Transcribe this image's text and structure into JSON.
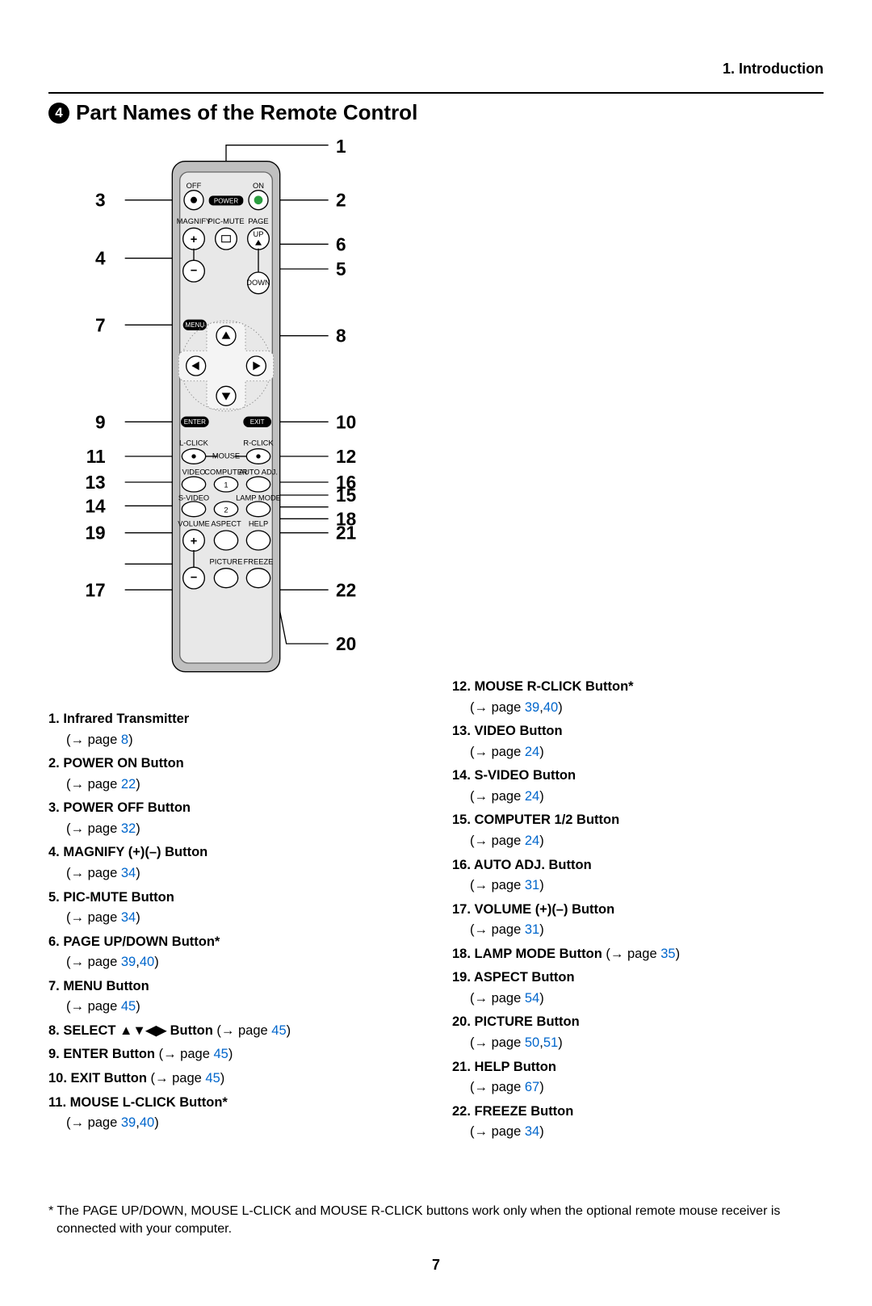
{
  "chapter": "1. Introduction",
  "section_number_glyph": "4",
  "section_title": "Part Names of the Remote Control",
  "page_number": "7",
  "footnote": "* The PAGE UP/DOWN, MOUSE L-CLICK and MOUSE R-CLICK buttons work only when the optional remote mouse receiver is connected with your computer.",
  "link_color": "#0066cc",
  "remote_labels": {
    "off": "OFF",
    "on": "ON",
    "power": "POWER",
    "magnify": "MAGNIFY",
    "picmute": "PIC-MUTE",
    "page": "PAGE",
    "up": "UP",
    "down": "DOWN",
    "menu": "MENU",
    "enter": "ENTER",
    "exit": "EXIT",
    "lclick": "L-CLICK",
    "rclick": "R-CLICK",
    "mouse": "MOUSE",
    "video": "VIDEO",
    "computer": "COMPUTER",
    "autoadj": "AUTO ADJ.",
    "svideo": "S-VIDEO",
    "lampmode": "LAMP MODE",
    "volume": "VOLUME",
    "aspect": "ASPECT",
    "help": "HELP",
    "picture": "PICTURE",
    "freeze": "FREEZE"
  },
  "callouts": {
    "n1": "1",
    "n2": "2",
    "n3": "3",
    "n4": "4",
    "n5": "5",
    "n6": "6",
    "n7": "7",
    "n8": "8",
    "n9": "9",
    "n10": "10",
    "n11": "11",
    "n12": "12",
    "n13": "13",
    "n14": "14",
    "n15": "15",
    "n16": "16",
    "n17": "17",
    "n18": "18",
    "n19": "19",
    "n20": "20",
    "n21": "21",
    "n22": "22"
  },
  "left_items": [
    {
      "num": "1.",
      "title": "Infrared Transmitter",
      "refs_prefix": "(→ page ",
      "refs": [
        "8"
      ],
      "refs_suffix": ")"
    },
    {
      "num": "2.",
      "title": "POWER ON Button",
      "refs_prefix": "(→ page ",
      "refs": [
        "22"
      ],
      "refs_suffix": ")"
    },
    {
      "num": "3.",
      "title": "POWER OFF Button",
      "refs_prefix": "(→ page ",
      "refs": [
        "32"
      ],
      "refs_suffix": ")"
    },
    {
      "num": "4.",
      "title": "MAGNIFY (+)(–) Button",
      "refs_prefix": "(→ page ",
      "refs": [
        "34"
      ],
      "refs_suffix": ")"
    },
    {
      "num": "5.",
      "title": "PIC-MUTE Button",
      "refs_prefix": "(→ page ",
      "refs": [
        "34"
      ],
      "refs_suffix": ")"
    },
    {
      "num": "6.",
      "title": "PAGE UP/DOWN Button*",
      "refs_prefix": "(→ page ",
      "refs": [
        "39",
        "40"
      ],
      "refs_suffix": ")"
    },
    {
      "num": "7.",
      "title": "MENU Button",
      "refs_prefix": "(→ page ",
      "refs": [
        "45"
      ],
      "refs_suffix": ")"
    },
    {
      "num": "8.",
      "title": "SELECT ▲▼◀▶ Button",
      "inline": true,
      "refs_prefix": " (→ page ",
      "refs": [
        "45"
      ],
      "refs_suffix": ")"
    },
    {
      "num": "9.",
      "title": "ENTER Button",
      "inline": true,
      "refs_prefix": " (→ page ",
      "refs": [
        "45"
      ],
      "refs_suffix": ")"
    },
    {
      "num": "10.",
      "title": "EXIT Button",
      "inline": true,
      "refs_prefix": " (→ page ",
      "refs": [
        "45"
      ],
      "refs_suffix": ")"
    },
    {
      "num": "11.",
      "title": "MOUSE L-CLICK Button*",
      "refs_prefix": "(→ page ",
      "refs": [
        "39",
        "40"
      ],
      "refs_suffix": ")"
    }
  ],
  "right_items": [
    {
      "num": "12.",
      "title": "MOUSE R-CLICK Button*",
      "refs_prefix": "(→ page ",
      "refs": [
        "39",
        "40"
      ],
      "refs_suffix": ")"
    },
    {
      "num": "13.",
      "title": "VIDEO Button",
      "refs_prefix": "(→ page ",
      "refs": [
        "24"
      ],
      "refs_suffix": ")"
    },
    {
      "num": "14.",
      "title": "S-VIDEO Button",
      "refs_prefix": "(→ page ",
      "refs": [
        "24"
      ],
      "refs_suffix": ")"
    },
    {
      "num": "15.",
      "title": "COMPUTER 1/2 Button",
      "refs_prefix": "(→ page ",
      "refs": [
        "24"
      ],
      "refs_suffix": ")"
    },
    {
      "num": "16.",
      "title": "AUTO ADJ. Button",
      "refs_prefix": "(→ page ",
      "refs": [
        "31"
      ],
      "refs_suffix": ")"
    },
    {
      "num": "17.",
      "title": "VOLUME (+)(–) Button",
      "refs_prefix": "(→ page ",
      "refs": [
        "31"
      ],
      "refs_suffix": ")"
    },
    {
      "num": "18.",
      "title": "LAMP MODE Button",
      "inline": true,
      "refs_prefix": " (→ page ",
      "refs": [
        "35"
      ],
      "refs_suffix": ")"
    },
    {
      "num": "19.",
      "title": "ASPECT Button",
      "refs_prefix": "(→ page ",
      "refs": [
        "54"
      ],
      "refs_suffix": ")"
    },
    {
      "num": "20.",
      "title": "PICTURE Button",
      "refs_prefix": "(→ page ",
      "refs": [
        "50",
        "51"
      ],
      "refs_suffix": ")"
    },
    {
      "num": "21.",
      "title": "HELP Button",
      "refs_prefix": "(→ page ",
      "refs": [
        "67"
      ],
      "refs_suffix": ")"
    },
    {
      "num": "22.",
      "title": "FREEZE Button",
      "refs_prefix": "(→ page ",
      "refs": [
        "34"
      ],
      "refs_suffix": ")"
    }
  ]
}
